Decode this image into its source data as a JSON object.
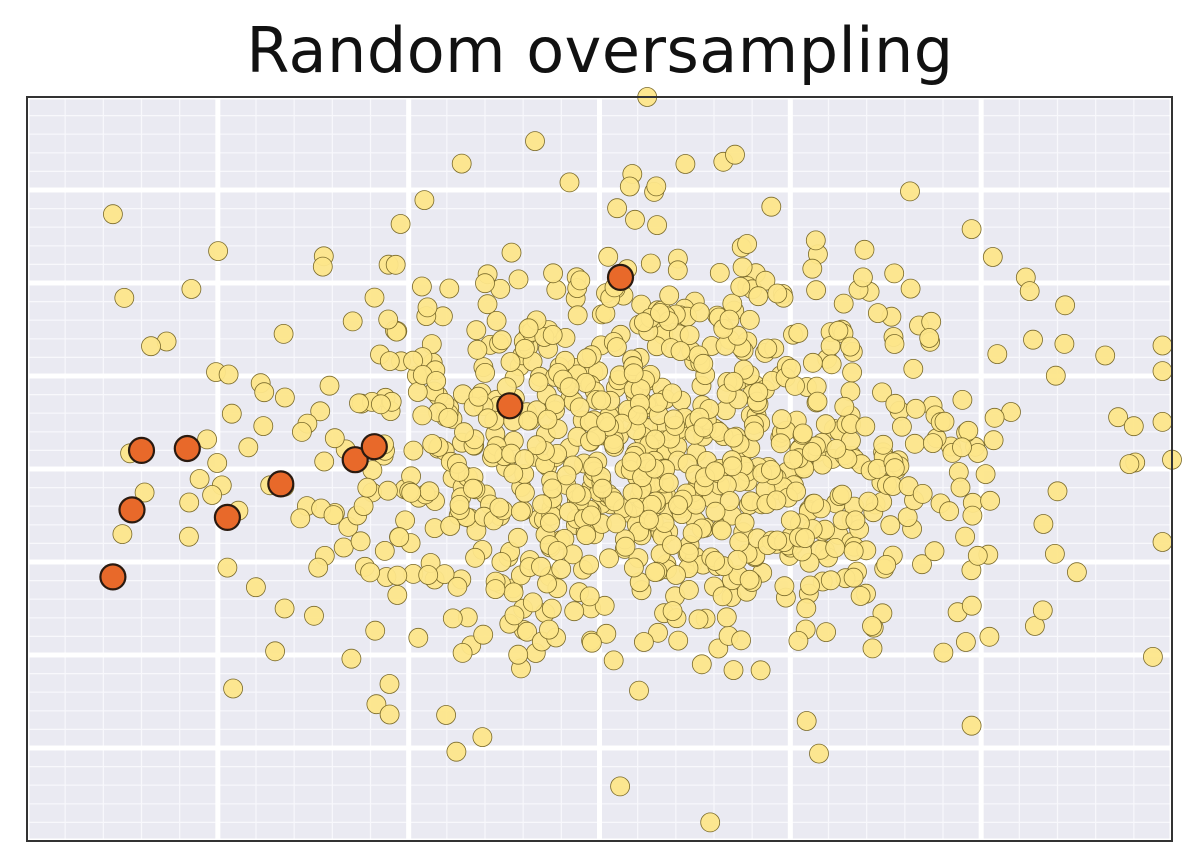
{
  "chart_data": {
    "type": "scatter",
    "title": "Random oversampling",
    "xlabel": "",
    "ylabel": "",
    "xlim": [
      -3.0,
      3.0
    ],
    "ylim": [
      -2.0,
      2.0
    ],
    "grid": true,
    "axis_ticks_visible": false,
    "legend": "none",
    "colors": {
      "panel": "#eaeaf2",
      "grid_major": "#ffffff",
      "grid_minor": "#f8f8fc",
      "frame": "#333333",
      "majority_fill": "#fde68a",
      "majority_stroke": "#7a6a2a",
      "minority_fill": "#e8692a",
      "minority_stroke": "#2a1a10"
    },
    "series": [
      {
        "class": "majority",
        "sample_count": 1000,
        "distribution": "gaussian cloud",
        "center": [
          0.3,
          0.1
        ],
        "spread": [
          0.95,
          0.55
        ],
        "points_outlying": [
          [
            -2.55,
            1.37
          ],
          [
            -2.49,
            0.92
          ],
          [
            -2.35,
            0.66
          ],
          [
            -2.5,
            -0.35
          ],
          [
            -2.15,
            -0.18
          ],
          [
            -2.03,
            -0.14
          ],
          [
            -1.95,
            -0.53
          ],
          [
            -1.65,
            -0.75
          ],
          [
            -1.7,
            -0.98
          ],
          [
            -1.92,
            -1.18
          ],
          [
            -1.3,
            -1.02
          ],
          [
            -1.1,
            -1.32
          ],
          [
            -0.75,
            -1.52
          ],
          [
            0.25,
            2.0
          ],
          [
            0.45,
            1.64
          ],
          [
            0.71,
            1.69
          ],
          [
            0.9,
            1.41
          ],
          [
            1.38,
            1.03
          ],
          [
            1.63,
            0.97
          ],
          [
            1.95,
            1.29
          ],
          [
            2.44,
            0.88
          ],
          [
            2.65,
            0.61
          ],
          [
            2.4,
            -0.12
          ],
          [
            2.8,
            0.23
          ],
          [
            2.9,
            -1.01
          ],
          [
            3.0,
            0.05
          ],
          [
            1.15,
            -1.53
          ],
          [
            0.58,
            -1.9
          ],
          [
            1.92,
            -0.93
          ],
          [
            1.95,
            -1.38
          ]
        ]
      },
      {
        "class": "minority",
        "points": [
          [
            -2.4,
            0.1
          ],
          [
            -2.16,
            0.11
          ],
          [
            -2.45,
            -0.22
          ],
          [
            -2.55,
            -0.58
          ],
          [
            -1.95,
            -0.26
          ],
          [
            -1.67,
            -0.08
          ],
          [
            -1.28,
            0.05
          ],
          [
            -1.18,
            0.12
          ],
          [
            -0.47,
            0.34
          ],
          [
            0.11,
            1.03
          ]
        ]
      }
    ]
  }
}
